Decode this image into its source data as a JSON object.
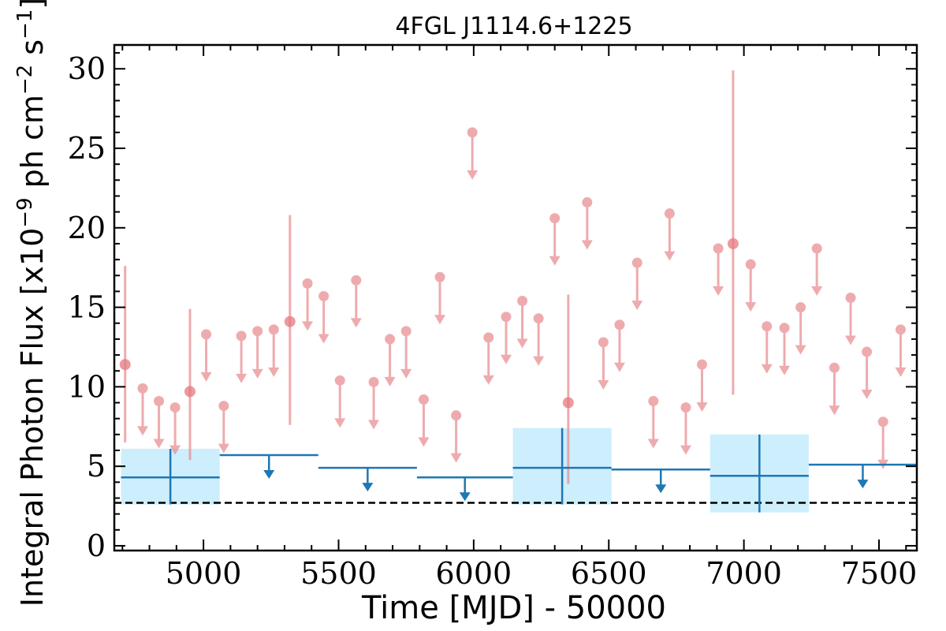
{
  "chart_data": {
    "type": "scatter",
    "title": "4FGL J1114.6+1225",
    "xlabel": "Time [MJD] - 50000",
    "ylabel_prefix": "Integral Photon Flux [x10",
    "ylabel_exp1": "−9",
    "ylabel_mid": " ph cm",
    "ylabel_exp2": "−2",
    "ylabel_s": " s",
    "ylabel_exp3": "−1",
    "ylabel_suffix": "]",
    "xlim": [
      4670,
      7640
    ],
    "ylim": [
      -0.3,
      31.5
    ],
    "x_ticks": [
      5000,
      5500,
      6000,
      6500,
      7000,
      7500
    ],
    "y_ticks": [
      0,
      5,
      10,
      15,
      20,
      25,
      30
    ],
    "grid": false,
    "colors": {
      "short_bins": "#e8888c",
      "long_bins": "#1f77b4",
      "long_band": "#cdeefc",
      "threshold": "#000000"
    },
    "threshold_line": 2.7,
    "short_bins_detections": [
      {
        "x": 4710,
        "y": 11.4,
        "lo": 6.5,
        "hi": 17.6
      },
      {
        "x": 4950,
        "y": 9.7,
        "lo": 5.4,
        "hi": 14.9
      },
      {
        "x": 5320,
        "y": 14.1,
        "lo": 7.6,
        "hi": 20.8
      },
      {
        "x": 6350,
        "y": 9.0,
        "lo": 3.9,
        "hi": 15.8
      },
      {
        "x": 6960,
        "y": 19.0,
        "lo": 9.5,
        "hi": 29.9
      }
    ],
    "short_bins_upper_limits": [
      {
        "x": 4775,
        "y": 9.9
      },
      {
        "x": 4835,
        "y": 9.1
      },
      {
        "x": 4895,
        "y": 8.7
      },
      {
        "x": 5010,
        "y": 13.3
      },
      {
        "x": 5075,
        "y": 8.8
      },
      {
        "x": 5140,
        "y": 13.2
      },
      {
        "x": 5200,
        "y": 13.5
      },
      {
        "x": 5260,
        "y": 13.6
      },
      {
        "x": 5385,
        "y": 16.5
      },
      {
        "x": 5445,
        "y": 15.7
      },
      {
        "x": 5505,
        "y": 10.4
      },
      {
        "x": 5565,
        "y": 16.7
      },
      {
        "x": 5630,
        "y": 10.3
      },
      {
        "x": 5690,
        "y": 13.0
      },
      {
        "x": 5750,
        "y": 13.5
      },
      {
        "x": 5815,
        "y": 9.2
      },
      {
        "x": 5875,
        "y": 16.9
      },
      {
        "x": 5935,
        "y": 8.2
      },
      {
        "x": 5995,
        "y": 26.0
      },
      {
        "x": 6055,
        "y": 13.1
      },
      {
        "x": 6120,
        "y": 14.4
      },
      {
        "x": 6180,
        "y": 15.4
      },
      {
        "x": 6240,
        "y": 14.3
      },
      {
        "x": 6300,
        "y": 20.6
      },
      {
        "x": 6420,
        "y": 21.6
      },
      {
        "x": 6480,
        "y": 12.8
      },
      {
        "x": 6540,
        "y": 13.9
      },
      {
        "x": 6605,
        "y": 17.8
      },
      {
        "x": 6665,
        "y": 9.1
      },
      {
        "x": 6725,
        "y": 20.9
      },
      {
        "x": 6785,
        "y": 8.7
      },
      {
        "x": 6845,
        "y": 11.4
      },
      {
        "x": 6905,
        "y": 18.7
      },
      {
        "x": 7025,
        "y": 17.7
      },
      {
        "x": 7085,
        "y": 13.8
      },
      {
        "x": 7150,
        "y": 13.7
      },
      {
        "x": 7210,
        "y": 15.0
      },
      {
        "x": 7270,
        "y": 18.7
      },
      {
        "x": 7335,
        "y": 11.2
      },
      {
        "x": 7395,
        "y": 15.6
      },
      {
        "x": 7455,
        "y": 12.2
      },
      {
        "x": 7515,
        "y": 7.8
      },
      {
        "x": 7580,
        "y": 13.6
      }
    ],
    "long_bins_detections": [
      {
        "x0": 4695,
        "x1": 5060,
        "y": 4.3,
        "lo": 2.6,
        "hi": 6.1
      },
      {
        "x0": 6145,
        "x1": 6510,
        "y": 4.9,
        "lo": 2.6,
        "hi": 7.4
      },
      {
        "x0": 6875,
        "x1": 7240,
        "y": 4.4,
        "lo": 2.1,
        "hi": 7.0
      }
    ],
    "long_bins_upper_limits": [
      {
        "x0": 5060,
        "x1": 5425,
        "y": 5.7
      },
      {
        "x0": 5425,
        "x1": 5790,
        "y": 4.9
      },
      {
        "x0": 5790,
        "x1": 6145,
        "y": 4.3
      },
      {
        "x0": 6510,
        "x1": 6875,
        "y": 4.8
      },
      {
        "x0": 7240,
        "x1": 7640,
        "y": 5.1
      }
    ]
  }
}
